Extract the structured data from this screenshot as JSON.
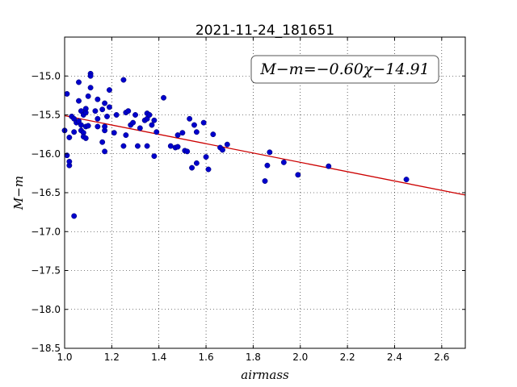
{
  "chart_data": {
    "type": "scatter",
    "title": "2021-11-24_181651",
    "xlabel": "airmass",
    "ylabel": "M−m",
    "xlim": [
      1.0,
      2.7
    ],
    "ylim": [
      -18.5,
      -14.5
    ],
    "xticks": [
      1.0,
      1.2,
      1.4,
      1.6,
      1.8,
      2.0,
      2.2,
      2.4,
      2.6
    ],
    "xtick_labels": [
      "1.0",
      "1.2",
      "1.4",
      "1.6",
      "1.8",
      "2.0",
      "2.2",
      "2.4",
      "2.6"
    ],
    "yticks": [
      -18.5,
      -18.0,
      -17.5,
      -17.0,
      -16.5,
      -16.0,
      -15.5,
      -15.0
    ],
    "ytick_labels": [
      "−18.5",
      "−18.0",
      "−17.5",
      "−17.0",
      "−16.5",
      "−16.0",
      "−15.5",
      "−15.0"
    ],
    "grid": true,
    "annotation": "M−m=−0.60χ−14.91",
    "fit": {
      "slope": -0.6,
      "intercept": -14.91,
      "color": "#cc0000"
    },
    "point_color": "#0000cc",
    "points": [
      [
        1.0,
        -15.7
      ],
      [
        1.01,
        -15.23
      ],
      [
        1.01,
        -16.02
      ],
      [
        1.02,
        -15.79
      ],
      [
        1.02,
        -16.15
      ],
      [
        1.02,
        -16.1
      ],
      [
        1.03,
        -15.52
      ],
      [
        1.04,
        -15.55
      ],
      [
        1.04,
        -15.72
      ],
      [
        1.04,
        -16.8
      ],
      [
        1.05,
        -15.6
      ],
      [
        1.06,
        -15.58
      ],
      [
        1.06,
        -15.32
      ],
      [
        1.06,
        -15.08
      ],
      [
        1.07,
        -15.45
      ],
      [
        1.07,
        -15.63
      ],
      [
        1.07,
        -15.7
      ],
      [
        1.08,
        -15.73
      ],
      [
        1.08,
        -15.78
      ],
      [
        1.08,
        -15.5
      ],
      [
        1.09,
        -15.47
      ],
      [
        1.09,
        -15.8
      ],
      [
        1.09,
        -15.42
      ],
      [
        1.09,
        -15.65
      ],
      [
        1.1,
        -15.26
      ],
      [
        1.1,
        -15.64
      ],
      [
        1.11,
        -15.15
      ],
      [
        1.11,
        -14.97
      ],
      [
        1.11,
        -15.0
      ],
      [
        1.13,
        -15.45
      ],
      [
        1.14,
        -15.3
      ],
      [
        1.14,
        -15.55
      ],
      [
        1.14,
        -15.65
      ],
      [
        1.16,
        -15.85
      ],
      [
        1.16,
        -15.43
      ],
      [
        1.17,
        -15.35
      ],
      [
        1.17,
        -15.97
      ],
      [
        1.17,
        -15.7
      ],
      [
        1.17,
        -15.65
      ],
      [
        1.18,
        -15.52
      ],
      [
        1.19,
        -15.4
      ],
      [
        1.19,
        -15.18
      ],
      [
        1.21,
        -15.73
      ],
      [
        1.22,
        -15.5
      ],
      [
        1.25,
        -15.05
      ],
      [
        1.25,
        -15.9
      ],
      [
        1.26,
        -15.47
      ],
      [
        1.26,
        -15.76
      ],
      [
        1.27,
        -15.45
      ],
      [
        1.28,
        -15.63
      ],
      [
        1.29,
        -15.6
      ],
      [
        1.3,
        -15.5
      ],
      [
        1.31,
        -15.9
      ],
      [
        1.32,
        -15.67
      ],
      [
        1.34,
        -15.57
      ],
      [
        1.35,
        -15.48
      ],
      [
        1.35,
        -15.55
      ],
      [
        1.35,
        -15.9
      ],
      [
        1.36,
        -15.5
      ],
      [
        1.37,
        -15.63
      ],
      [
        1.38,
        -15.57
      ],
      [
        1.38,
        -16.03
      ],
      [
        1.39,
        -15.72
      ],
      [
        1.42,
        -15.28
      ],
      [
        1.45,
        -15.9
      ],
      [
        1.47,
        -15.92
      ],
      [
        1.48,
        -15.76
      ],
      [
        1.48,
        -15.91
      ],
      [
        1.5,
        -15.73
      ],
      [
        1.51,
        -15.96
      ],
      [
        1.52,
        -15.97
      ],
      [
        1.53,
        -15.55
      ],
      [
        1.54,
        -16.18
      ],
      [
        1.55,
        -15.63
      ],
      [
        1.56,
        -15.72
      ],
      [
        1.56,
        -16.12
      ],
      [
        1.59,
        -15.6
      ],
      [
        1.6,
        -16.04
      ],
      [
        1.61,
        -16.2
      ],
      [
        1.63,
        -15.75
      ],
      [
        1.66,
        -15.92
      ],
      [
        1.67,
        -15.95
      ],
      [
        1.69,
        -15.88
      ],
      [
        1.85,
        -16.35
      ],
      [
        1.86,
        -16.15
      ],
      [
        1.87,
        -15.98
      ],
      [
        1.93,
        -16.11
      ],
      [
        1.99,
        -16.27
      ],
      [
        2.12,
        -16.16
      ],
      [
        2.45,
        -16.33
      ]
    ]
  }
}
